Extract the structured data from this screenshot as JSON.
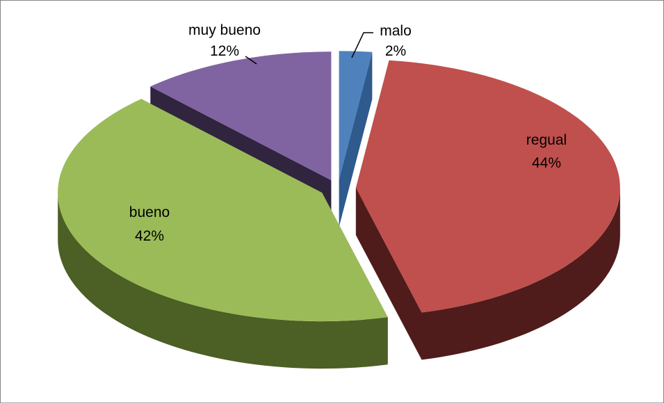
{
  "chart_data": {
    "type": "pie",
    "is_3d": true,
    "exploded": true,
    "categories": [
      "malo",
      "regual",
      "bueno",
      "muy bueno"
    ],
    "values": [
      2,
      44,
      42,
      12
    ],
    "percent_labels": [
      "2%",
      "44%",
      "42%",
      "12%"
    ],
    "colors": [
      "#4F81BD",
      "#C0504D",
      "#9BBB59",
      "#8064A2"
    ],
    "side_colors": [
      "#2E5A8E",
      "#4F1C1B",
      "#4C5F24",
      "#30243F"
    ],
    "title": "",
    "legend": "none"
  }
}
